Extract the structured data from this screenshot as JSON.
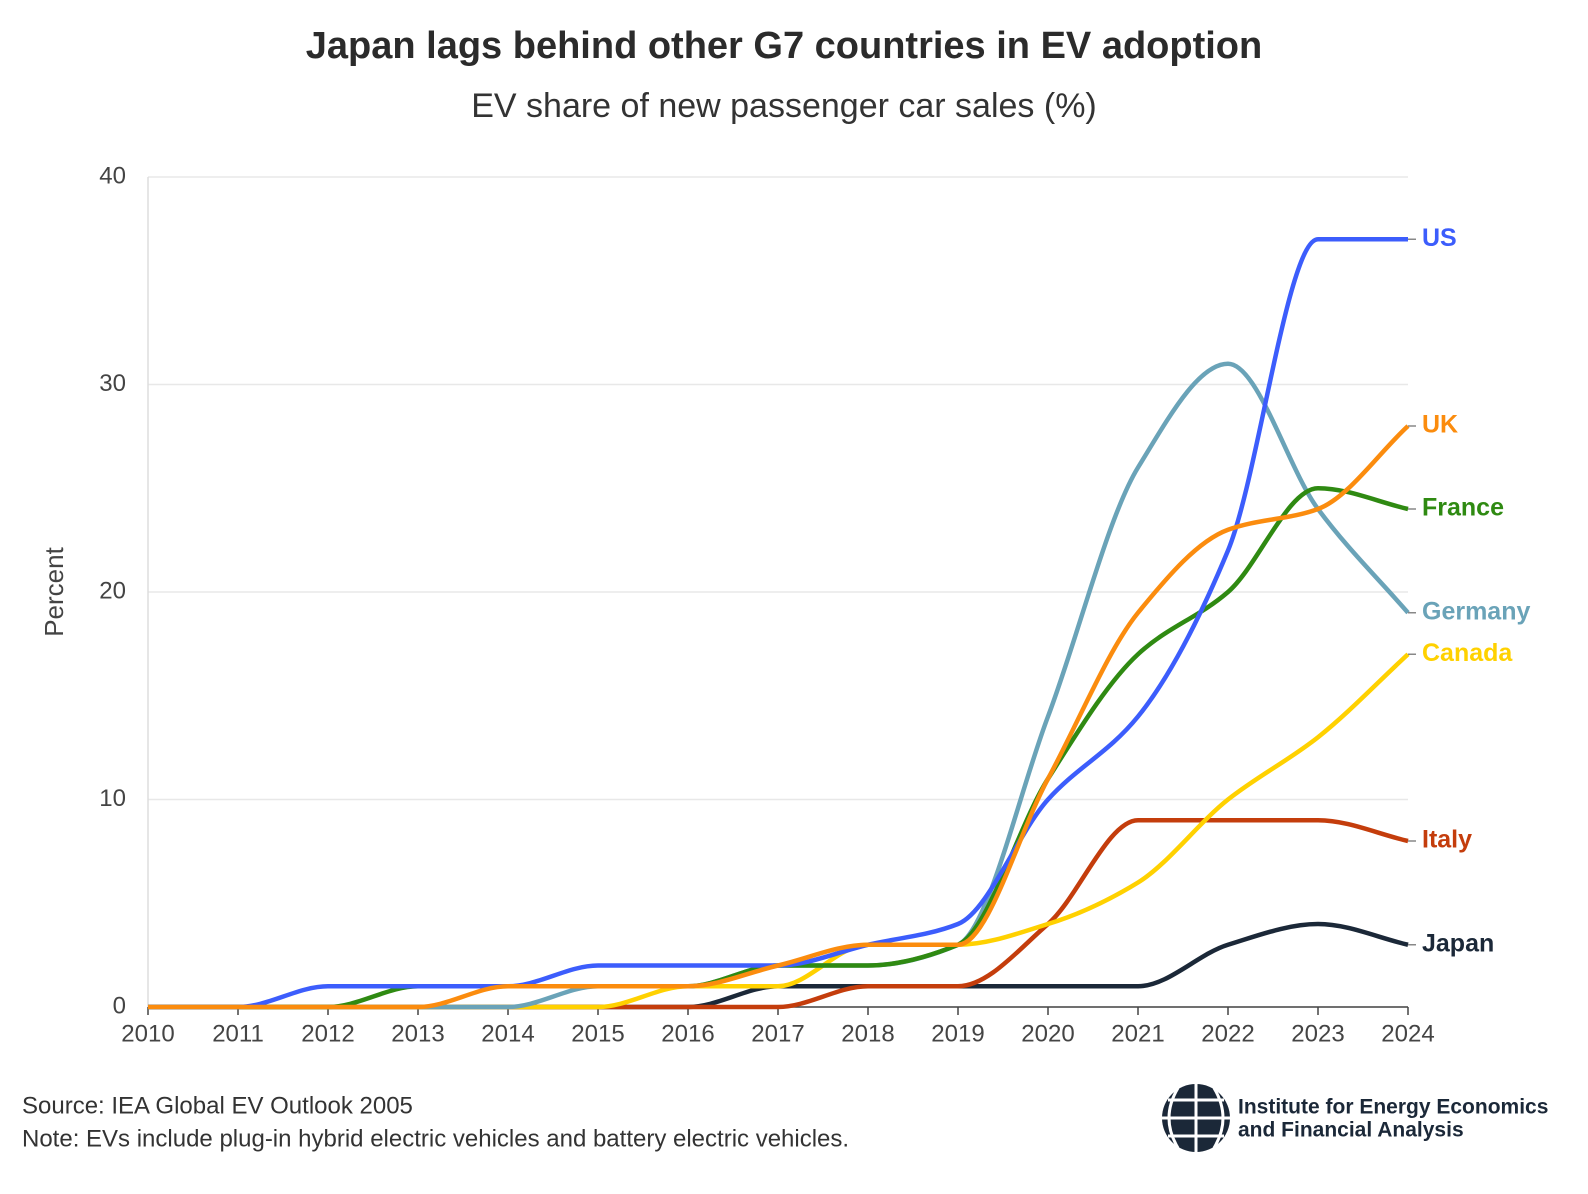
{
  "chart_data": {
    "type": "line",
    "title": "Japan lags behind other G7 countries in EV adoption",
    "subtitle": "EV share of new passenger car sales (%)",
    "y_label": "Percent",
    "x": [
      2010,
      2011,
      2012,
      2013,
      2014,
      2015,
      2016,
      2017,
      2018,
      2019,
      2020,
      2021,
      2022,
      2023,
      2024
    ],
    "xlim": [
      2010,
      2024
    ],
    "xticks": [
      2010,
      2011,
      2012,
      2013,
      2014,
      2015,
      2016,
      2017,
      2018,
      2019,
      2020,
      2021,
      2022,
      2023,
      2024
    ],
    "ylim": [
      0,
      40
    ],
    "yticks": [
      0,
      10,
      20,
      30,
      40
    ],
    "grid": true,
    "series": [
      {
        "name": "Japan",
        "color": "#1b2838",
        "values": [
          0,
          0,
          0,
          0,
          0,
          0,
          0,
          1,
          1,
          1,
          1,
          1,
          3,
          4,
          3
        ]
      },
      {
        "name": "Italy",
        "color": "#c43d0c",
        "values": [
          0,
          0,
          0,
          0,
          0,
          0,
          0,
          0,
          1,
          1,
          4,
          9,
          9,
          9,
          8
        ]
      },
      {
        "name": "Canada",
        "color": "#ffd100",
        "values": [
          0,
          0,
          0,
          0,
          0,
          0,
          1,
          1,
          3,
          3,
          4,
          6,
          10,
          13,
          17
        ]
      },
      {
        "name": "Germany",
        "color": "#6aa3b8",
        "values": [
          0,
          0,
          0,
          0,
          0,
          1,
          1,
          2,
          2,
          3,
          14,
          26,
          31,
          24,
          19
        ]
      },
      {
        "name": "France",
        "color": "#2f8a12",
        "values": [
          0,
          0,
          0,
          1,
          1,
          1,
          1,
          2,
          2,
          3,
          11,
          17,
          20,
          25,
          24
        ]
      },
      {
        "name": "US",
        "color": "#3c5dfc",
        "values": [
          0,
          0,
          1,
          1,
          1,
          2,
          2,
          2,
          3,
          4,
          10,
          14,
          22,
          37,
          37
        ]
      },
      {
        "name": "UK",
        "color": "#fb8c0e",
        "values": [
          0,
          0,
          0,
          0,
          1,
          1,
          1,
          2,
          3,
          3,
          11,
          19,
          23,
          24,
          28
        ]
      }
    ]
  },
  "footer": {
    "source": "Source: IEA Global EV Outlook 2005",
    "note": "Note: EVs include plug-in hybrid electric vehicles and battery electric vehicles.",
    "logo_lines": [
      "Institute for Energy Economics",
      "and Financial Analysis"
    ]
  }
}
